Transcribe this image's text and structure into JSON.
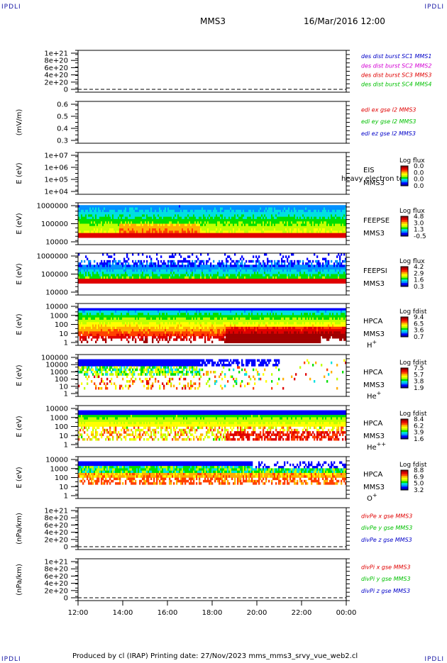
{
  "corner_label": "IPDLI",
  "header": {
    "spacecraft": "MMS3",
    "date_time": "16/Mar/2016 12:00"
  },
  "footer": {
    "text": "Produced by cl (IRAP)   Printing date: 27/Nov/2023   mms_mms3_srvy_vue_web2.cl"
  },
  "colors": {
    "red": "#e00000",
    "magenta": "#d400d4",
    "green": "#00c000",
    "blue": "#0000c8",
    "cbar": [
      "#0000a0",
      "#0000ff",
      "#0090ff",
      "#00e0e0",
      "#00e000",
      "#c0ff00",
      "#ffff00",
      "#ffb000",
      "#ff4000",
      "#e00000",
      "#a00000"
    ]
  },
  "chart_data": [
    {
      "type": "line",
      "yticks": [
        "1e+21",
        "8e+20",
        "6e+20",
        "4e+20",
        "2e+20",
        "0"
      ],
      "ylabel": "",
      "legend": [
        {
          "text": "des dist burst SC1 MMS1",
          "color": "blue"
        },
        {
          "text": "des dist burst SC2 MMS2",
          "color": "magenta"
        },
        {
          "text": "des dist burst SC3 MMS3",
          "color": "red"
        },
        {
          "text": "des dist burst SC4 MMS4",
          "color": "green"
        }
      ]
    },
    {
      "type": "line",
      "yticks": [
        "0.6",
        "0.5",
        "0.4",
        "0.3"
      ],
      "ylabel": "(mV/m)",
      "legend": [
        {
          "text": "edi ex gse l2 MMS3",
          "color": "red"
        },
        {
          "text": "edi ey gse l2 MMS3",
          "color": "green"
        },
        {
          "text": "edi ez gse l2 MMS3",
          "color": "blue"
        }
      ]
    },
    {
      "type": "heatmap",
      "yticks": [
        "1e+07",
        "1e+06",
        "1e+05",
        "1e+04"
      ],
      "ylabel": "E (eV)",
      "side_labels": [
        "EIS",
        "MMS3"
      ],
      "overlay_text": "heavy electron to",
      "cbar_title": "Log flux",
      "cbar_ticks": [
        "0.0",
        "0.0",
        "0.0",
        "0.0"
      ]
    },
    {
      "type": "heatmap",
      "yticks": [
        "1000000",
        "100000",
        "10000"
      ],
      "ylabel": "E (eV)",
      "side_labels": [
        "FEEPSE",
        "MMS3"
      ],
      "cbar_title": "Log flux",
      "cbar_ticks": [
        "4.8",
        "3.0",
        "1.3",
        "-0.5"
      ]
    },
    {
      "type": "heatmap",
      "yticks": [
        "1000000",
        "100000",
        "10000"
      ],
      "ylabel": "E (eV)",
      "side_labels": [
        "FEEPSI",
        "MMS3"
      ],
      "cbar_title": "Log flux",
      "cbar_ticks": [
        "4.2",
        "2.9",
        "1.6",
        "0.3"
      ]
    },
    {
      "type": "heatmap",
      "yticks": [
        "10000",
        "1000",
        "100",
        "10",
        "1"
      ],
      "ylabel": "E (eV)",
      "side_labels": [
        "HPCA",
        "MMS3"
      ],
      "species": "H",
      "species_sup": "+",
      "cbar_title": "Log fdist",
      "cbar_ticks": [
        "9.4",
        "6.5",
        "3.6",
        "0.7"
      ]
    },
    {
      "type": "heatmap",
      "yticks": [
        "100000",
        "10000",
        "1000",
        "100",
        "10",
        "1"
      ],
      "ylabel": "E (eV)",
      "side_labels": [
        "HPCA",
        "MMS3"
      ],
      "species": "He",
      "species_sup": "+",
      "cbar_title": "Log fdist",
      "cbar_ticks": [
        "7.5",
        "5.7",
        "3.8",
        "1.9"
      ]
    },
    {
      "type": "heatmap",
      "yticks": [
        "10000",
        "1000",
        "100",
        "10",
        "1"
      ],
      "ylabel": "E (eV)",
      "side_labels": [
        "HPCA",
        "MMS3"
      ],
      "species": "He",
      "species_sup": "++",
      "cbar_title": "Log fdist",
      "cbar_ticks": [
        "8.4",
        "6.2",
        "3.9",
        "1.6"
      ]
    },
    {
      "type": "heatmap",
      "yticks": [
        "10000",
        "1000",
        "100",
        "10",
        "1"
      ],
      "ylabel": "E (eV)",
      "side_labels": [
        "HPCA",
        "MMS3"
      ],
      "species": "O",
      "species_sup": "+",
      "cbar_title": "Log fdist",
      "cbar_ticks": [
        "8.8",
        "6.9",
        "5.0",
        "3.2"
      ]
    },
    {
      "type": "line",
      "yticks": [
        "1e+21",
        "8e+20",
        "6e+20",
        "4e+20",
        "2e+20",
        "0"
      ],
      "ylabel": "(nPa/km)",
      "legend": [
        {
          "text": "divPe x gse MMS3",
          "color": "red"
        },
        {
          "text": "divPe y gse MMS3",
          "color": "green"
        },
        {
          "text": "divPe z gse MMS3",
          "color": "blue"
        }
      ]
    },
    {
      "type": "line",
      "yticks": [
        "1e+21",
        "8e+20",
        "6e+20",
        "4e+20",
        "2e+20",
        "0"
      ],
      "ylabel": "(nPa/km)",
      "legend": [
        {
          "text": "divPi x gse MMS3",
          "color": "red"
        },
        {
          "text": "divPi y gse MMS3",
          "color": "green"
        },
        {
          "text": "divPi z gse MMS3",
          "color": "blue"
        }
      ]
    }
  ],
  "x_axis": {
    "ticks": [
      "12:00",
      "14:00",
      "16:00",
      "18:00",
      "20:00",
      "22:00",
      "00:00"
    ]
  }
}
